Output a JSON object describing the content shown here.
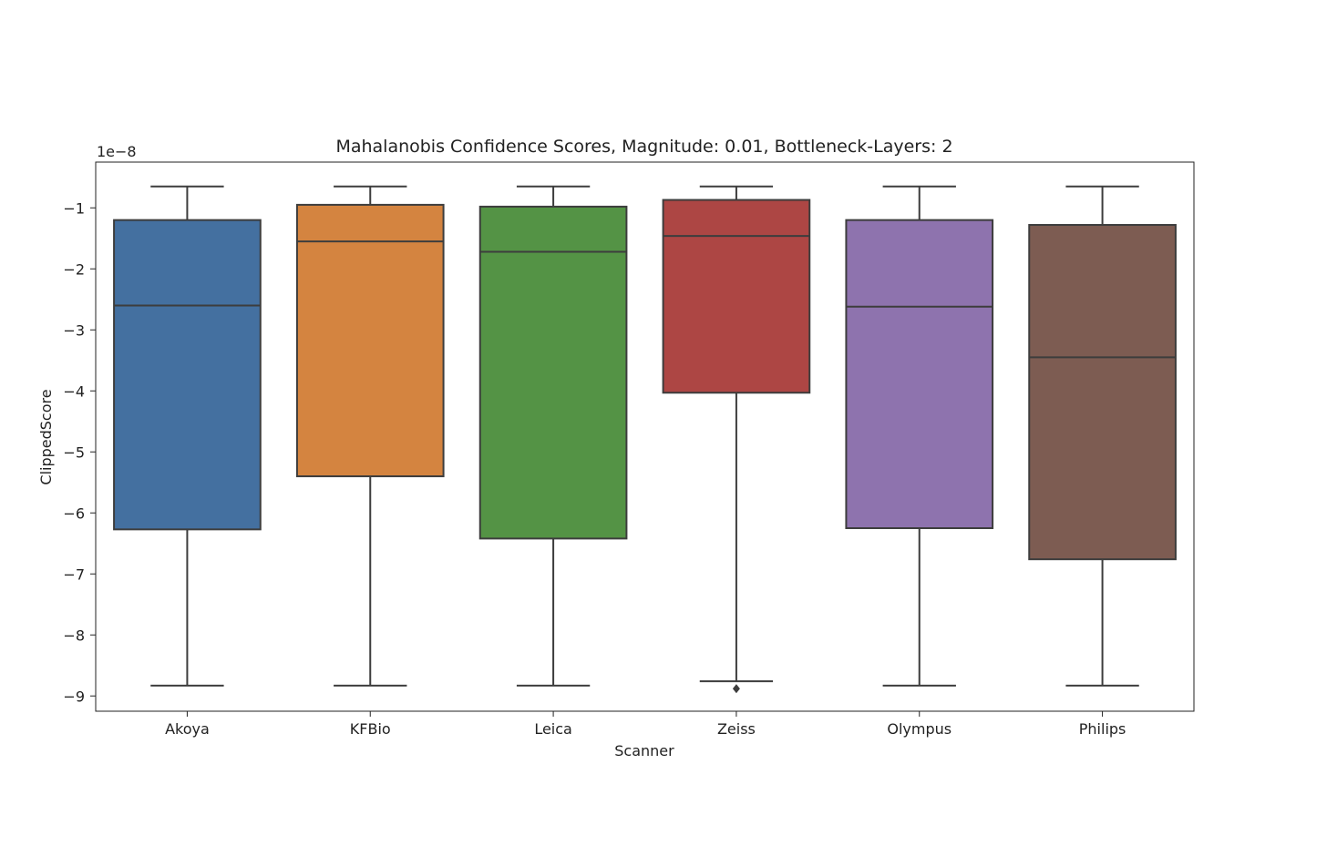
{
  "chart_data": {
    "type": "box",
    "title": "Mahalanobis Confidence Scores, Magnitude: 0.01, Bottleneck-Layers: 2",
    "xlabel": "Scanner",
    "ylabel": "ClippedScore",
    "y_offset_label": "1e−8",
    "y_scale": 1e-08,
    "ylim": [
      -9.25,
      -0.25
    ],
    "yticks": [
      -1,
      -2,
      -3,
      -4,
      -5,
      -6,
      -7,
      -8,
      -9
    ],
    "ytick_labels": [
      "−1",
      "−2",
      "−3",
      "−4",
      "−5",
      "−6",
      "−7",
      "−8",
      "−9"
    ],
    "grid": false,
    "legend": "none",
    "categories": [
      "Akoya",
      "KFBio",
      "Leica",
      "Zeiss",
      "Olympus",
      "Philips"
    ],
    "colors": [
      "#4470a0",
      "#d48440",
      "#549345",
      "#ad4644",
      "#8e73ae",
      "#7d5c52"
    ],
    "boxes": [
      {
        "whisker_high": -0.65,
        "q3": -1.2,
        "median": -2.6,
        "q1": -6.27,
        "whisker_low": -8.83,
        "outliers": []
      },
      {
        "whisker_high": -0.65,
        "q3": -0.95,
        "median": -1.55,
        "q1": -5.4,
        "whisker_low": -8.83,
        "outliers": []
      },
      {
        "whisker_high": -0.65,
        "q3": -0.98,
        "median": -1.72,
        "q1": -6.42,
        "whisker_low": -8.83,
        "outliers": []
      },
      {
        "whisker_high": -0.65,
        "q3": -0.87,
        "median": -1.46,
        "q1": -4.03,
        "whisker_low": -8.76,
        "outliers": [
          -8.88
        ]
      },
      {
        "whisker_high": -0.65,
        "q3": -1.2,
        "median": -2.62,
        "q1": -6.25,
        "whisker_low": -8.83,
        "outliers": []
      },
      {
        "whisker_high": -0.65,
        "q3": -1.28,
        "median": -3.45,
        "q1": -6.76,
        "whisker_low": -8.83,
        "outliers": []
      }
    ]
  }
}
